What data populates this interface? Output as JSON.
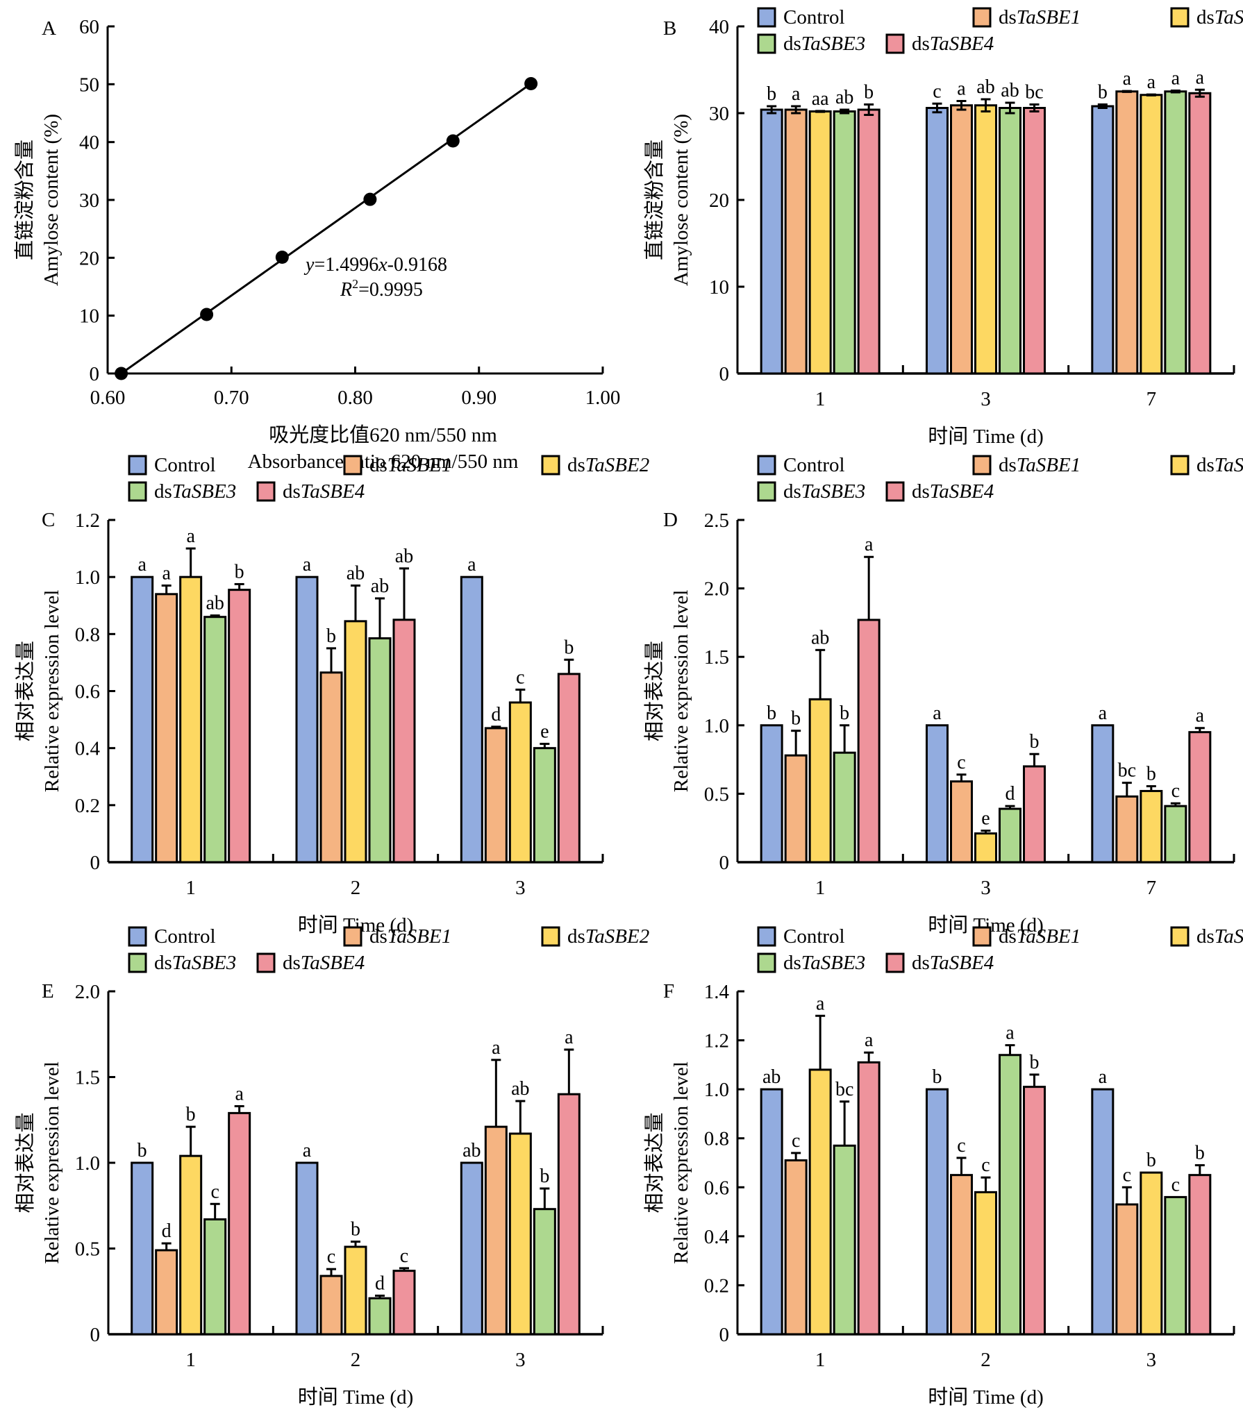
{
  "figure_title": "",
  "legend": {
    "series": [
      {
        "key": "control",
        "prefix": "Control",
        "italic": "",
        "color": "#92acdf"
      },
      {
        "key": "sbe1",
        "prefix": "ds",
        "italic": "TaSBE1",
        "color": "#f5b482"
      },
      {
        "key": "sbe2",
        "prefix": "ds",
        "italic": "TaSBE2",
        "color": "#fdd862"
      },
      {
        "key": "sbe3",
        "prefix": "ds",
        "italic": "TaSBE3",
        "color": "#add88f"
      },
      {
        "key": "sbe4",
        "prefix": "ds",
        "italic": "TaSBE4",
        "color": "#ee939c"
      }
    ]
  },
  "chart_data": [
    {
      "panel": "A",
      "type": "scatter",
      "title": "",
      "xlabel_cn": "吸光度比值620 nm/550 nm",
      "xlabel": "Absorbance ratio 620 nm/550 nm",
      "ylabel_cn": "直链淀粉含量",
      "ylabel": "Amylose content (%)",
      "xlim": [
        0.6,
        1.0
      ],
      "ylim": [
        0,
        60
      ],
      "xticks": [
        "0.60",
        "0.70",
        "0.80",
        "0.90",
        "1.00"
      ],
      "xtick_values": [
        0.6,
        0.7,
        0.8,
        0.9,
        1.0
      ],
      "yticks": [
        "0",
        "10",
        "20",
        "30",
        "40",
        "50",
        "60"
      ],
      "ytick_values": [
        0,
        10,
        20,
        30,
        40,
        50,
        60
      ],
      "points": [
        {
          "x": 0.611,
          "y": 0
        },
        {
          "x": 0.68,
          "y": 10.2
        },
        {
          "x": 0.741,
          "y": 20.1
        },
        {
          "x": 0.812,
          "y": 30.1
        },
        {
          "x": 0.879,
          "y": 40.2
        },
        {
          "x": 0.942,
          "y": 50.1
        }
      ],
      "fit_line": {
        "x_start": 0.611,
        "y_start": 0,
        "x_end": 0.942,
        "y_end": 50.1
      },
      "annotation": {
        "equation_y": "y",
        "equation_rest": "=1.4996",
        "equation_x": "x",
        "equation_tail": "-0.9168",
        "r2_label": "R",
        "r2_sup": "2",
        "r2_value": "=0.9995"
      }
    },
    {
      "panel": "B",
      "type": "bar",
      "xlabel_cn": "时间",
      "xlabel": "Time (d)",
      "ylabel_cn": "直链淀粉含量",
      "ylabel": "Amylose content (%)",
      "ylim": [
        0,
        40
      ],
      "yticks": [
        "0",
        "10",
        "20",
        "30",
        "40"
      ],
      "ytick_values": [
        0,
        10,
        20,
        30,
        40
      ],
      "categories": [
        "1",
        "3",
        "7"
      ],
      "series": [
        {
          "name": "Control",
          "values": [
            30.4,
            30.6,
            30.8
          ],
          "errors": [
            0.4,
            0.5,
            0.2
          ],
          "labels": [
            "b",
            "c",
            "b"
          ]
        },
        {
          "name": "dsTaSBE1",
          "values": [
            30.4,
            30.9,
            32.5
          ],
          "errors": [
            0.4,
            0.5,
            0.05
          ],
          "labels": [
            "a",
            "a",
            "a"
          ]
        },
        {
          "name": "dsTaSBE2",
          "values": [
            30.2,
            30.9,
            32.1
          ],
          "errors": [
            0.05,
            0.7,
            0.05
          ],
          "labels": [
            "aa",
            "ab",
            "a"
          ]
        },
        {
          "name": "dsTaSBE3",
          "values": [
            30.2,
            30.6,
            32.5
          ],
          "errors": [
            0.2,
            0.6,
            0.1
          ],
          "labels": [
            "ab",
            "ab",
            "a"
          ]
        },
        {
          "name": "dsTaSBE4",
          "values": [
            30.4,
            30.6,
            32.3
          ],
          "errors": [
            0.6,
            0.4,
            0.4
          ],
          "labels": [
            "b",
            "bc",
            "a"
          ]
        }
      ]
    },
    {
      "panel": "C",
      "type": "bar",
      "xlabel_cn": "时间",
      "xlabel": "Time (d)",
      "ylabel_cn": "相对表达量",
      "ylabel": "Relative expression level",
      "ylim": [
        0,
        1.2
      ],
      "yticks": [
        "0",
        "0.2",
        "0.4",
        "0.6",
        "0.8",
        "1.0",
        "1.2"
      ],
      "ytick_values": [
        0,
        0.2,
        0.4,
        0.6,
        0.8,
        1.0,
        1.2
      ],
      "categories": [
        "1",
        "2",
        "3"
      ],
      "series": [
        {
          "name": "Control",
          "values": [
            1.0,
            1.0,
            1.0
          ],
          "errors": [
            0,
            0,
            0
          ],
          "labels": [
            "a",
            "a",
            "a"
          ]
        },
        {
          "name": "dsTaSBE1",
          "values": [
            0.94,
            0.665,
            0.47
          ],
          "errors": [
            0.03,
            0.085,
            0.005
          ],
          "labels": [
            "a",
            "b",
            "d"
          ]
        },
        {
          "name": "dsTaSBE2",
          "values": [
            1.0,
            0.845,
            0.56
          ],
          "errors": [
            0.1,
            0.125,
            0.045
          ],
          "labels": [
            "a",
            "ab",
            "c"
          ]
        },
        {
          "name": "dsTaSBE3",
          "values": [
            0.86,
            0.785,
            0.4
          ],
          "errors": [
            0.005,
            0.14,
            0.015
          ],
          "labels": [
            "ab",
            "ab",
            "e"
          ]
        },
        {
          "name": "dsTaSBE4",
          "values": [
            0.955,
            0.85,
            0.66
          ],
          "errors": [
            0.02,
            0.18,
            0.05
          ],
          "labels": [
            "b",
            "ab",
            "b"
          ]
        }
      ]
    },
    {
      "panel": "D",
      "type": "bar",
      "xlabel_cn": "时间",
      "xlabel": "Time (d)",
      "ylabel_cn": "相对表达量",
      "ylabel": "Relative expression level",
      "ylim": [
        0,
        2.5
      ],
      "yticks": [
        "0",
        "0.5",
        "1.0",
        "1.5",
        "2.0",
        "2.5"
      ],
      "ytick_values": [
        0,
        0.5,
        1.0,
        1.5,
        2.0,
        2.5
      ],
      "categories": [
        "1",
        "3",
        "7"
      ],
      "series": [
        {
          "name": "Control",
          "values": [
            1.0,
            1.0,
            1.0
          ],
          "errors": [
            0,
            0,
            0
          ],
          "labels": [
            "b",
            "a",
            "a"
          ]
        },
        {
          "name": "dsTaSBE1",
          "values": [
            0.78,
            0.59,
            0.48
          ],
          "errors": [
            0.18,
            0.05,
            0.1
          ],
          "labels": [
            "b",
            "c",
            "bc"
          ]
        },
        {
          "name": "dsTaSBE2",
          "values": [
            1.19,
            0.21,
            0.52
          ],
          "errors": [
            0.36,
            0.02,
            0.035
          ],
          "labels": [
            "ab",
            "e",
            "b"
          ]
        },
        {
          "name": "dsTaSBE3",
          "values": [
            0.8,
            0.39,
            0.41
          ],
          "errors": [
            0.2,
            0.02,
            0.02
          ],
          "labels": [
            "b",
            "d",
            "c"
          ]
        },
        {
          "name": "dsTaSBE4",
          "values": [
            1.77,
            0.7,
            0.95
          ],
          "errors": [
            0.46,
            0.09,
            0.03
          ],
          "labels": [
            "a",
            "b",
            "a"
          ]
        }
      ]
    },
    {
      "panel": "E",
      "type": "bar",
      "xlabel_cn": "时间",
      "xlabel": "Time (d)",
      "ylabel_cn": "相对表达量",
      "ylabel": "Relative expression level",
      "ylim": [
        0,
        2.0
      ],
      "yticks": [
        "0",
        "0.5",
        "1.0",
        "1.5",
        "2.0"
      ],
      "ytick_values": [
        0,
        0.5,
        1.0,
        1.5,
        2.0
      ],
      "categories": [
        "1",
        "2",
        "3"
      ],
      "series": [
        {
          "name": "Control",
          "values": [
            1.0,
            1.0,
            1.0
          ],
          "errors": [
            0,
            0,
            0
          ],
          "labels": [
            "b",
            "a",
            "ab"
          ]
        },
        {
          "name": "dsTaSBE1",
          "values": [
            0.49,
            0.34,
            1.21
          ],
          "errors": [
            0.04,
            0.04,
            0.39
          ],
          "labels": [
            "d",
            "c",
            "a"
          ]
        },
        {
          "name": "dsTaSBE2",
          "values": [
            1.04,
            0.51,
            1.17
          ],
          "errors": [
            0.17,
            0.03,
            0.19
          ],
          "labels": [
            "b",
            "b",
            "ab"
          ]
        },
        {
          "name": "dsTaSBE3",
          "values": [
            0.67,
            0.21,
            0.73
          ],
          "errors": [
            0.09,
            0.015,
            0.12
          ],
          "labels": [
            "c",
            "d",
            "b"
          ]
        },
        {
          "name": "dsTaSBE4",
          "values": [
            1.29,
            0.37,
            1.4
          ],
          "errors": [
            0.04,
            0.015,
            0.26
          ],
          "labels": [
            "a",
            "c",
            "a"
          ]
        }
      ]
    },
    {
      "panel": "F",
      "type": "bar",
      "xlabel_cn": "时间",
      "xlabel": "Time (d)",
      "ylabel_cn": "相对表达量",
      "ylabel": "Relative expression level",
      "ylim": [
        0,
        1.4
      ],
      "yticks": [
        "0",
        "0.2",
        "0.4",
        "0.6",
        "0.8",
        "1.0",
        "1.2",
        "1.4"
      ],
      "ytick_values": [
        0,
        0.2,
        0.4,
        0.6,
        0.8,
        1.0,
        1.2,
        1.4
      ],
      "categories": [
        "1",
        "2",
        "3"
      ],
      "series": [
        {
          "name": "Control",
          "values": [
            1.0,
            1.0,
            1.0
          ],
          "errors": [
            0,
            0,
            0
          ],
          "labels": [
            "ab",
            "b",
            "a"
          ]
        },
        {
          "name": "dsTaSBE1",
          "values": [
            0.71,
            0.65,
            0.53
          ],
          "errors": [
            0.03,
            0.07,
            0.07
          ],
          "labels": [
            "c",
            "c",
            "c"
          ]
        },
        {
          "name": "dsTaSBE2",
          "values": [
            1.08,
            0.58,
            0.66
          ],
          "errors": [
            0.22,
            0.06,
            0.0
          ],
          "labels": [
            "a",
            "c",
            "b"
          ]
        },
        {
          "name": "dsTaSBE3",
          "values": [
            0.77,
            1.14,
            0.56
          ],
          "errors": [
            0.18,
            0.04,
            0.0
          ],
          "labels": [
            "bc",
            "a",
            "c"
          ]
        },
        {
          "name": "dsTaSBE4",
          "values": [
            1.11,
            1.01,
            0.65
          ],
          "errors": [
            0.04,
            0.05,
            0.04
          ],
          "labels": [
            "a",
            "b",
            "b"
          ]
        }
      ]
    }
  ]
}
